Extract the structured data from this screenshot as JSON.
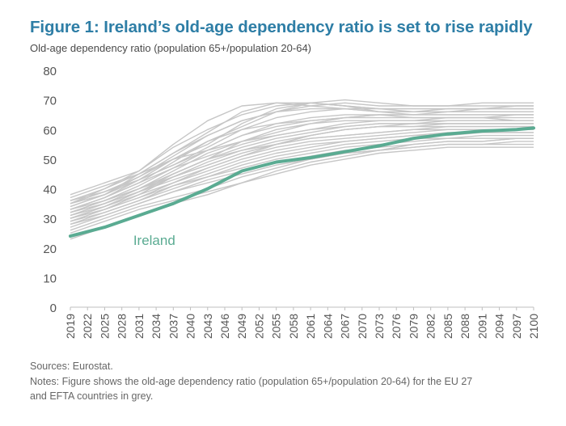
{
  "title": "Figure 1: Ireland’s old-age dependency ratio is set to rise rapidly",
  "subtitle": "Old-age dependency ratio (population 65+/population 20-64)",
  "sources": "Sources: Eurostat.",
  "notes_line1": "Notes: Figure shows the old-age dependency ratio (population 65+/population 20-64) for the EU 27",
  "notes_line2": "and EFTA countries in grey.",
  "colors": {
    "highlight": "#5aab92",
    "others": "#c6c6c6",
    "title": "#2e7ea6"
  },
  "chart_data": {
    "type": "line",
    "ylim": [
      0,
      80
    ],
    "yticks": [
      0,
      10,
      20,
      30,
      40,
      50,
      60,
      70,
      80
    ],
    "xlim": [
      2019,
      2100
    ],
    "xticks": [
      "2019",
      "2022",
      "2025",
      "2028",
      "2031",
      "2034",
      "2037",
      "2040",
      "2043",
      "2046",
      "2049",
      "2052",
      "2055",
      "2058",
      "2061",
      "2064",
      "2067",
      "2070",
      "2073",
      "2076",
      "2079",
      "2082",
      "2085",
      "2088",
      "2091",
      "2094",
      "2097",
      "2100"
    ],
    "x": [
      2019,
      2025,
      2031,
      2037,
      2043,
      2049,
      2055,
      2061,
      2067,
      2073,
      2079,
      2085,
      2091,
      2097,
      2100
    ],
    "highlight_series": {
      "name": "Ireland",
      "values": [
        24,
        27,
        31,
        35,
        40,
        46,
        49,
        50.5,
        52.5,
        54.5,
        57,
        58.5,
        59.5,
        60,
        60.5
      ]
    },
    "other_series": [
      {
        "values": [
          38,
          42,
          46,
          55,
          63,
          68,
          69,
          68,
          67,
          66,
          66,
          67,
          67,
          67,
          67
        ]
      },
      {
        "values": [
          36,
          40,
          46,
          54,
          60,
          65,
          68,
          69,
          68,
          67,
          67,
          67,
          67,
          67,
          67
        ]
      },
      {
        "values": [
          35,
          38,
          44,
          51,
          58,
          63,
          66,
          68,
          69,
          68,
          68,
          68,
          68,
          68,
          68
        ]
      },
      {
        "values": [
          37,
          41,
          45,
          50,
          55,
          62,
          67,
          69,
          68,
          66,
          66,
          66,
          66,
          66,
          66
        ]
      },
      {
        "values": [
          33,
          37,
          42,
          49,
          56,
          61,
          66,
          69,
          70,
          69,
          68,
          68,
          69,
          69,
          69
        ]
      },
      {
        "values": [
          34,
          38,
          43,
          48,
          54,
          60,
          64,
          66,
          67,
          67,
          67,
          67,
          67,
          67,
          67
        ]
      },
      {
        "values": [
          33,
          37,
          43,
          50,
          56,
          60,
          62,
          63,
          64,
          65,
          65,
          66,
          66,
          66,
          66
        ]
      },
      {
        "values": [
          35,
          39,
          44,
          50,
          53,
          56,
          59,
          62,
          64,
          65,
          65,
          65,
          65,
          65,
          65
        ]
      },
      {
        "values": [
          32,
          36,
          41,
          47,
          53,
          58,
          61,
          63,
          64,
          64,
          64,
          64,
          64,
          65,
          65
        ]
      },
      {
        "values": [
          31,
          35,
          40,
          46,
          52,
          56,
          58,
          60,
          62,
          63,
          63,
          64,
          64,
          64,
          64
        ]
      },
      {
        "values": [
          30,
          34,
          39,
          45,
          50,
          54,
          57,
          59,
          61,
          62,
          62,
          63,
          63,
          63,
          63
        ]
      },
      {
        "values": [
          33,
          37,
          42,
          47,
          51,
          55,
          58,
          60,
          61,
          62,
          62,
          62,
          62,
          62,
          62
        ]
      },
      {
        "values": [
          31,
          35,
          40,
          45,
          50,
          53,
          56,
          58,
          60,
          61,
          61,
          62,
          62,
          62,
          62
        ]
      },
      {
        "values": [
          30,
          34,
          39,
          44,
          48,
          52,
          55,
          58,
          60,
          61,
          61,
          61,
          61,
          61,
          61
        ]
      },
      {
        "values": [
          32,
          36,
          40,
          44,
          48,
          52,
          55,
          57,
          58,
          59,
          60,
          61,
          61,
          61,
          61
        ]
      },
      {
        "values": [
          29,
          33,
          38,
          44,
          49,
          53,
          55,
          57,
          58,
          59,
          60,
          60,
          60,
          60,
          60
        ]
      },
      {
        "values": [
          30,
          33,
          37,
          42,
          47,
          51,
          54,
          56,
          57,
          58,
          59,
          60,
          60,
          60,
          60
        ]
      },
      {
        "values": [
          31,
          34,
          38,
          42,
          46,
          50,
          53,
          55,
          56,
          57,
          58,
          59,
          59,
          59,
          59
        ]
      },
      {
        "values": [
          28,
          32,
          36,
          41,
          45,
          49,
          52,
          54,
          56,
          57,
          58,
          58,
          59,
          59,
          59
        ]
      },
      {
        "values": [
          29,
          32,
          36,
          40,
          44,
          48,
          51,
          53,
          55,
          56,
          57,
          57,
          58,
          58,
          58
        ]
      },
      {
        "values": [
          30,
          33,
          37,
          41,
          44,
          47,
          50,
          52,
          54,
          55,
          56,
          57,
          57,
          57,
          57
        ]
      },
      {
        "values": [
          27,
          31,
          35,
          39,
          43,
          46,
          49,
          51,
          53,
          54,
          55,
          56,
          56,
          57,
          57
        ]
      },
      {
        "values": [
          28,
          31,
          35,
          39,
          42,
          45,
          48,
          50,
          52,
          53,
          54,
          55,
          55,
          56,
          56
        ]
      },
      {
        "values": [
          26,
          30,
          34,
          37,
          40,
          44,
          47,
          50,
          52,
          53,
          54,
          55,
          55,
          55,
          55
        ]
      },
      {
        "values": [
          25,
          29,
          33,
          36,
          39,
          42,
          45,
          48,
          50,
          52,
          53,
          54,
          54,
          54,
          54
        ]
      },
      {
        "values": [
          23,
          27,
          31,
          35,
          38,
          42,
          46,
          49,
          51,
          53,
          55,
          56,
          56,
          57,
          57
        ]
      },
      {
        "values": [
          34,
          38,
          45,
          52,
          58,
          63,
          66,
          67,
          67,
          66,
          65,
          65,
          65,
          65,
          65
        ]
      },
      {
        "values": [
          36,
          39,
          43,
          48,
          53,
          58,
          62,
          64,
          65,
          65,
          64,
          64,
          64,
          63,
          63
        ]
      },
      {
        "values": [
          32,
          35,
          39,
          43,
          47,
          51,
          55,
          58,
          60,
          61,
          62,
          62,
          62,
          62,
          62
        ]
      },
      {
        "values": [
          35,
          40,
          45,
          52,
          59,
          66,
          69,
          69,
          68,
          67,
          66,
          66,
          67,
          68,
          68
        ]
      },
      {
        "values": [
          33,
          36,
          40,
          45,
          50,
          56,
          60,
          62,
          63,
          63,
          63,
          63,
          63,
          63,
          63
        ]
      }
    ],
    "annotation": "Ireland"
  }
}
